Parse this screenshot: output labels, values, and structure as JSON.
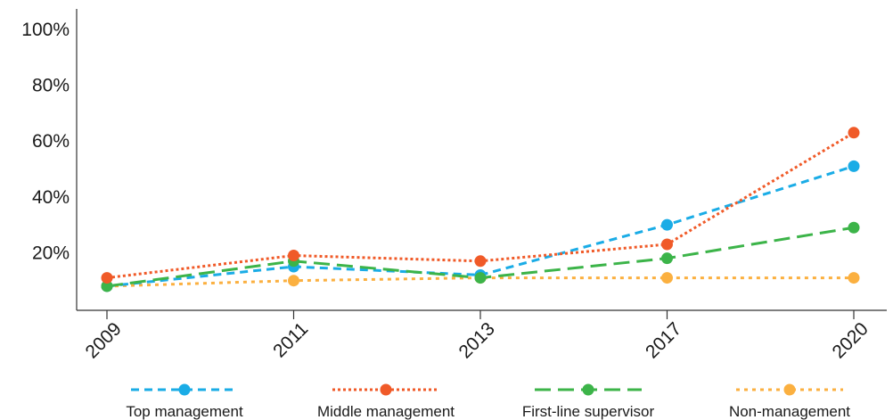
{
  "chart_data": {
    "type": "line",
    "x": [
      "2009",
      "2011",
      "2013",
      "2017",
      "2020"
    ],
    "y_ticks": [
      "20%",
      "40%",
      "60%",
      "80%",
      "100%"
    ],
    "ylim": [
      0,
      100
    ],
    "grid": false,
    "legend_position": "bottom",
    "series": [
      {
        "name": "Top management",
        "values": [
          8,
          15,
          12,
          30,
          51
        ],
        "color": "#1aace6",
        "dash": "dashed-short"
      },
      {
        "name": "Middle management",
        "values": [
          11,
          19,
          17,
          23,
          63
        ],
        "color": "#f05a28",
        "dash": "dotted"
      },
      {
        "name": "First-line supervisor",
        "values": [
          8,
          17,
          11,
          18,
          29
        ],
        "color": "#3cb449",
        "dash": "dashed-long"
      },
      {
        "name": "Non-management",
        "values": [
          8,
          10,
          11,
          11,
          11
        ],
        "color": "#fbb040",
        "dash": "dotted-fine"
      }
    ]
  }
}
